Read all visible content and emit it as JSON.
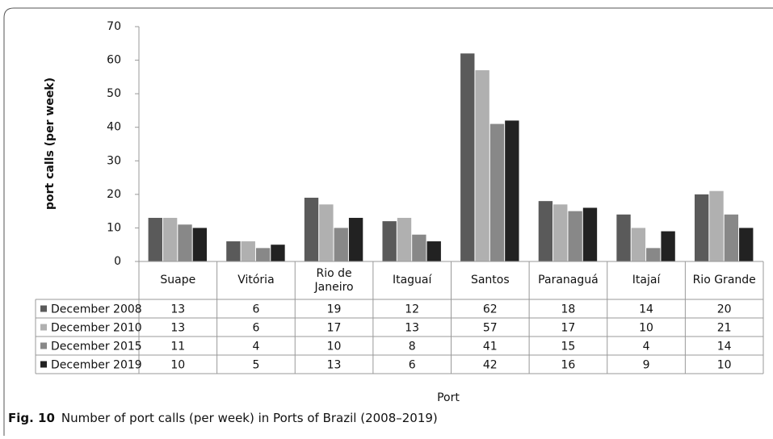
{
  "chart_data": {
    "type": "bar",
    "ylabel": "port calls (per week)",
    "xlabel": "Port",
    "categories": [
      "Suape",
      "Vitória",
      "Rio de Janeiro",
      "Itaguaí",
      "Santos",
      "Paranaguá",
      "Itajaí",
      "Rio Grande"
    ],
    "series": [
      {
        "name": "December 2008",
        "color": "#5a5a5a",
        "values": [
          13,
          6,
          19,
          12,
          62,
          18,
          14,
          20
        ]
      },
      {
        "name": "December 2010",
        "color": "#b0b0b0",
        "values": [
          13,
          6,
          17,
          13,
          57,
          17,
          10,
          21
        ]
      },
      {
        "name": "December 2015",
        "color": "#888888",
        "values": [
          11,
          4,
          10,
          8,
          41,
          15,
          4,
          14
        ]
      },
      {
        "name": "December 2019",
        "color": "#222222",
        "values": [
          10,
          5,
          13,
          6,
          42,
          16,
          9,
          10
        ]
      }
    ],
    "ylim": [
      0,
      70
    ],
    "yticks": [
      0,
      10,
      20,
      30,
      40,
      50,
      60,
      70
    ],
    "caption": {
      "label": "Fig. 10",
      "text": "Number of port calls (per week) in Ports of Brazil (2008–2019)"
    }
  }
}
